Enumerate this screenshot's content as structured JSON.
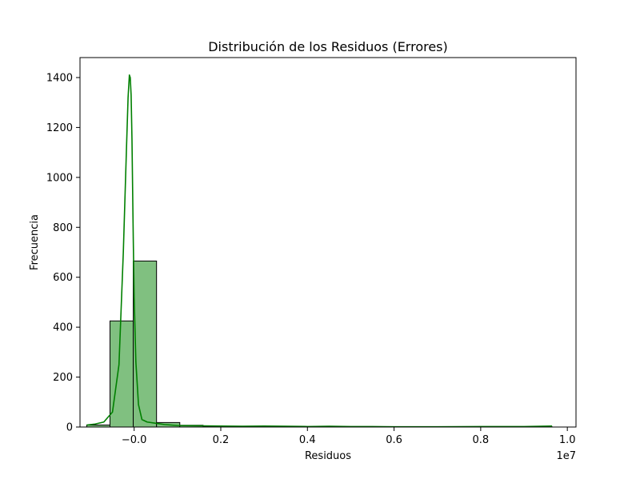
{
  "chart_data": {
    "type": "histogram",
    "title": "Distribución de los Residuos (Errores)",
    "xlabel": "Residuos",
    "ylabel": "Frecuencia",
    "x_offset_label": "1e7",
    "xlim": [
      -0.125,
      1.02
    ],
    "ylim": [
      0,
      1480
    ],
    "x_ticks": [
      0.0,
      0.2,
      0.4,
      0.6,
      0.8,
      1.0
    ],
    "x_tick_labels": [
      "−0.0",
      "0.2",
      "0.4",
      "0.6",
      "0.8",
      "1.0"
    ],
    "y_ticks": [
      0,
      200,
      400,
      600,
      800,
      1000,
      1200,
      1400
    ],
    "y_tick_labels": [
      "0",
      "200",
      "400",
      "600",
      "800",
      "1000",
      "1200",
      "1400"
    ],
    "bin_edges": [
      -0.1095,
      -0.0558,
      -0.0021,
      0.0517,
      0.1054,
      0.1591,
      0.2128,
      0.2665,
      0.3202,
      0.3739,
      0.4276,
      0.4814,
      0.5351,
      0.5888,
      0.6425,
      0.6962,
      0.7499,
      0.8036,
      0.8573,
      0.9111,
      0.9648
    ],
    "counts": [
      8,
      425,
      665,
      18,
      7,
      3,
      2,
      2,
      1,
      1,
      1,
      1,
      1,
      1,
      0,
      0,
      1,
      0,
      0,
      1
    ],
    "kde": {
      "x": [
        -0.1095,
        -0.09,
        -0.07,
        -0.05,
        -0.035,
        -0.025,
        -0.018,
        -0.014,
        -0.011,
        -0.009,
        -0.007,
        -0.005,
        -0.0035,
        -0.002,
        0.0,
        0.004,
        0.01,
        0.018,
        0.03,
        0.05,
        0.07,
        0.1,
        0.15,
        0.2,
        0.25,
        0.3,
        0.35,
        0.4,
        0.45,
        0.5,
        0.55,
        0.6,
        0.7,
        0.8,
        0.9,
        0.9648
      ],
      "y": [
        8,
        12,
        20,
        60,
        250,
        700,
        1100,
        1320,
        1410,
        1400,
        1330,
        1150,
        950,
        750,
        520,
        260,
        90,
        30,
        20,
        15,
        10,
        6,
        5,
        4,
        3,
        4,
        3,
        2,
        3,
        2,
        2,
        1,
        1,
        2,
        2,
        4
      ]
    },
    "bar_color": "#80c080",
    "bar_edge_color": "#000000",
    "kde_color": "#008000",
    "grid": false,
    "legend": "none"
  }
}
